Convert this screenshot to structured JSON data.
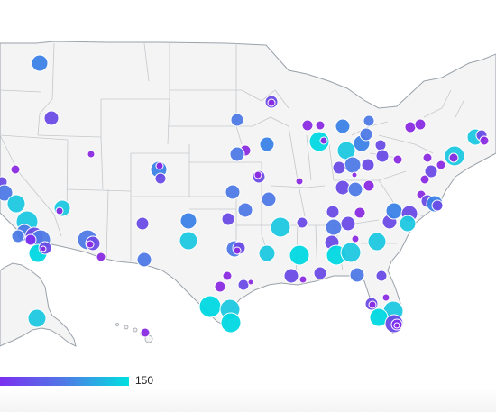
{
  "map": {
    "region": "United States",
    "land_color": "#f4f4f4",
    "border_color": "#c4c8cc",
    "coast_color": "#9aa2aa"
  },
  "legend": {
    "max_label": "150",
    "color_low": "#7b2ff0",
    "color_high": "#00e0e0"
  },
  "markers": {
    "count": 110,
    "value_scale_max": 150,
    "color_scale": [
      "#7b2ff0",
      "#4f7ae6",
      "#00e0e0"
    ]
  }
}
